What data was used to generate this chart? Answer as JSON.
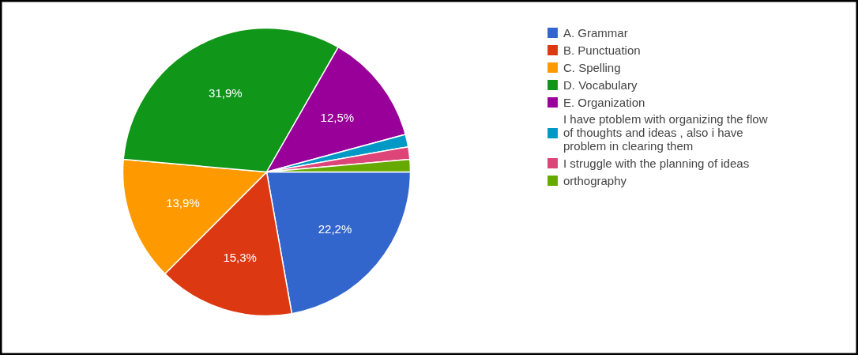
{
  "chart_data": {
    "type": "pie",
    "categories": [
      "A. Grammar",
      "B. Punctuation",
      "C. Spelling",
      "D. Vocabulary",
      "E. Organization",
      "I have ptoblem with organizing the flow of thoughts and ideas , also i have problem in clearing them",
      "I struggle with the planning of ideas",
      "orthography"
    ],
    "values": [
      22.2,
      15.3,
      13.9,
      31.9,
      12.5,
      1.4,
      1.4,
      1.4
    ],
    "value_labels": [
      "22,2%",
      "15,3%",
      "13,9%",
      "31,9%",
      "12,5%",
      null,
      null,
      null
    ],
    "colors": [
      "#3366cc",
      "#dc3912",
      "#ff9900",
      "#109618",
      "#990099",
      "#0099c6",
      "#dd4477",
      "#66aa00"
    ],
    "legend": "top right"
  }
}
